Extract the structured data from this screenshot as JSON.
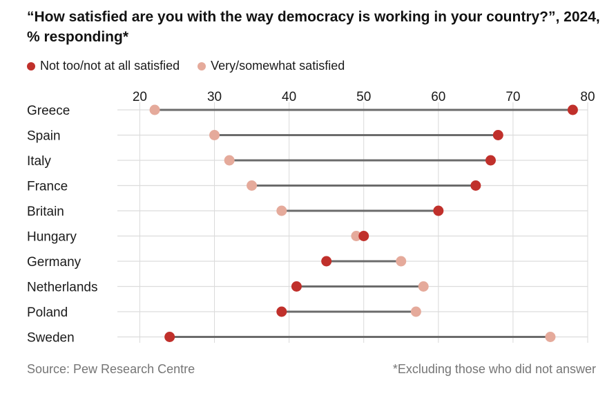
{
  "title": "“How satisfied are you with the way democracy is working in your country?”, 2024, % responding*",
  "legend": [
    {
      "label": "Not too/not at all satisfied",
      "color": "#c0302b"
    },
    {
      "label": "Very/somewhat satisfied",
      "color": "#e5aa9b"
    }
  ],
  "source": "Source: Pew Research Centre",
  "note": "*Excluding those who did not answer",
  "chart_data": {
    "type": "dumbbell",
    "title": "“How satisfied are you with the way democracy is working in your country?”, 2024, % responding*",
    "xlim": [
      17,
      80
    ],
    "xticks": [
      20,
      30,
      40,
      50,
      60,
      70,
      80
    ],
    "xaxis_position": "top",
    "categories": [
      "Greece",
      "Spain",
      "Italy",
      "France",
      "Britain",
      "Hungary",
      "Germany",
      "Netherlands",
      "Poland",
      "Sweden"
    ],
    "series": [
      {
        "name": "Not too/not at all satisfied",
        "color": "#c0302b",
        "values": [
          78,
          68,
          67,
          65,
          60,
          50,
          45,
          41,
          39,
          24
        ]
      },
      {
        "name": "Very/somewhat satisfied",
        "color": "#e5aa9b",
        "values": [
          22,
          30,
          32,
          35,
          39,
          49,
          55,
          58,
          57,
          75
        ]
      }
    ]
  }
}
